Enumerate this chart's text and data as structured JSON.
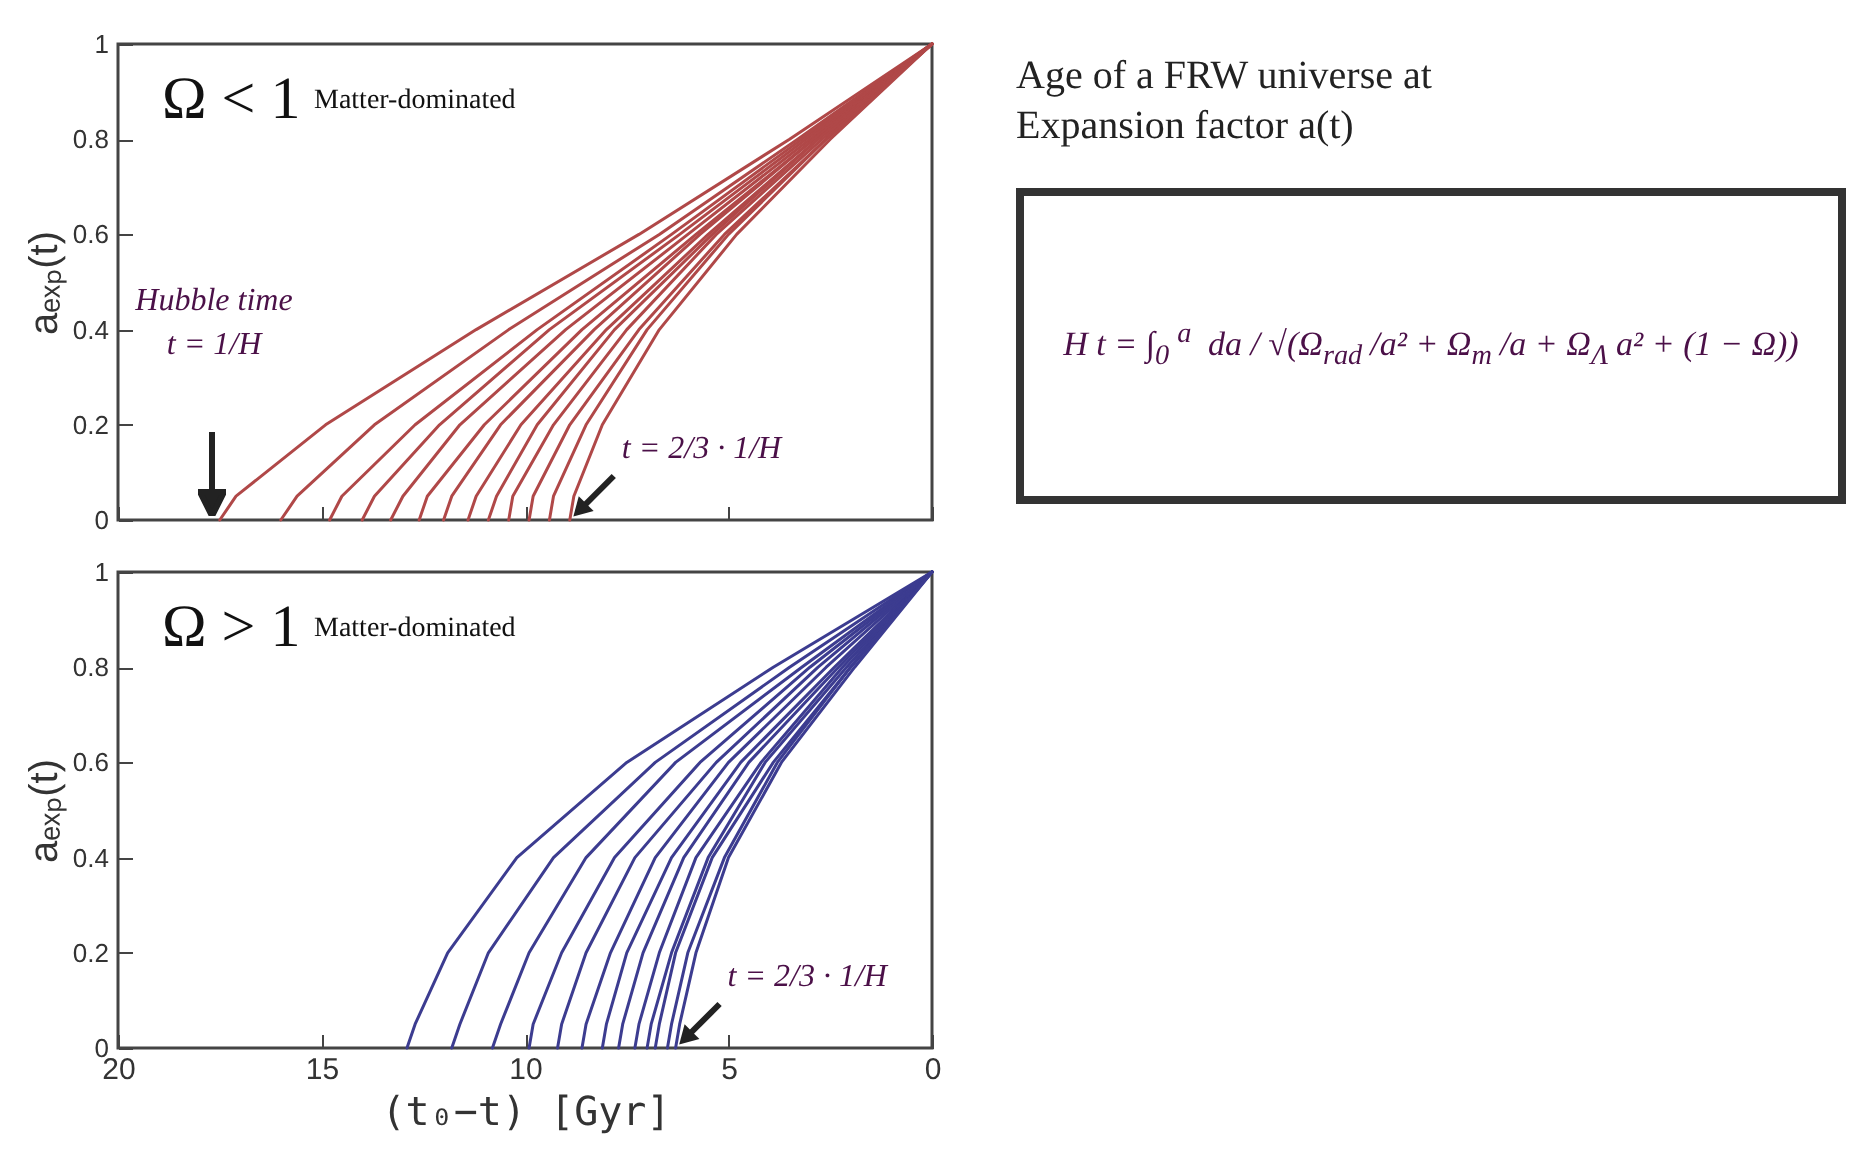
{
  "chart_data": [
    {
      "type": "line",
      "xlim": [
        20,
        0
      ],
      "ylim": [
        0,
        1
      ],
      "xticks": [
        20,
        15,
        10,
        5,
        0
      ],
      "yticks": [
        0,
        0.2,
        0.4,
        0.6,
        0.8,
        1
      ],
      "ylabel": "aₑₓₚ(t)",
      "tick_labels": "y",
      "annotations": [
        "Ω < 1",
        "Matter-dominated",
        "Hubble time\nt = 1/H",
        {
          "text": "t = 2/3 · 1/H",
          "x": 8.9,
          "y": 0
        }
      ],
      "series": [
        {
          "color": "#b04848",
          "x": [
            17.5,
            17.1,
            14.9,
            11.2,
            7.2,
            3.5,
            0
          ],
          "values": [
            0,
            0.05,
            0.2,
            0.4,
            0.6,
            0.8,
            1
          ]
        },
        {
          "color": "#b04848",
          "x": [
            16.0,
            15.6,
            13.7,
            10.4,
            6.7,
            3.3,
            0
          ],
          "values": [
            0,
            0.05,
            0.2,
            0.4,
            0.6,
            0.8,
            1
          ]
        },
        {
          "color": "#b04848",
          "x": [
            14.8,
            14.5,
            12.7,
            9.7,
            6.4,
            3.2,
            0
          ],
          "values": [
            0,
            0.05,
            0.2,
            0.4,
            0.6,
            0.8,
            1
          ]
        },
        {
          "color": "#b04848",
          "x": [
            14.0,
            13.7,
            12.1,
            9.4,
            6.2,
            3.1,
            0
          ],
          "values": [
            0,
            0.05,
            0.2,
            0.4,
            0.6,
            0.8,
            1
          ]
        },
        {
          "color": "#b04848",
          "x": [
            13.3,
            13.0,
            11.6,
            9.0,
            6.0,
            3.0,
            0
          ],
          "values": [
            0,
            0.05,
            0.2,
            0.4,
            0.6,
            0.8,
            1
          ]
        },
        {
          "color": "#b04848",
          "x": [
            12.6,
            12.4,
            11.0,
            8.6,
            5.8,
            2.9,
            0
          ],
          "values": [
            0,
            0.05,
            0.2,
            0.4,
            0.6,
            0.8,
            1
          ]
        },
        {
          "color": "#b04848",
          "x": [
            12.0,
            11.8,
            10.6,
            8.3,
            5.7,
            2.9,
            0
          ],
          "values": [
            0,
            0.05,
            0.2,
            0.4,
            0.6,
            0.8,
            1
          ]
        },
        {
          "color": "#b04848",
          "x": [
            11.4,
            11.2,
            10.1,
            8.0,
            5.5,
            2.8,
            0
          ],
          "values": [
            0,
            0.05,
            0.2,
            0.4,
            0.6,
            0.8,
            1
          ]
        },
        {
          "color": "#b04848",
          "x": [
            10.9,
            10.7,
            9.7,
            7.8,
            5.4,
            2.8,
            0
          ],
          "values": [
            0,
            0.05,
            0.2,
            0.4,
            0.6,
            0.8,
            1
          ]
        },
        {
          "color": "#b04848",
          "x": [
            10.4,
            10.3,
            9.3,
            7.5,
            5.3,
            2.7,
            0
          ],
          "values": [
            0,
            0.05,
            0.2,
            0.4,
            0.6,
            0.8,
            1
          ]
        },
        {
          "color": "#b04848",
          "x": [
            9.9,
            9.8,
            8.9,
            7.2,
            5.1,
            2.6,
            0
          ],
          "values": [
            0,
            0.05,
            0.2,
            0.4,
            0.6,
            0.8,
            1
          ]
        },
        {
          "color": "#b04848",
          "x": [
            9.4,
            9.3,
            8.5,
            7.0,
            5.0,
            2.6,
            0
          ],
          "values": [
            0,
            0.05,
            0.2,
            0.4,
            0.6,
            0.8,
            1
          ]
        },
        {
          "color": "#b04848",
          "x": [
            8.9,
            8.8,
            8.1,
            6.7,
            4.8,
            2.5,
            0
          ],
          "values": [
            0,
            0.05,
            0.2,
            0.4,
            0.6,
            0.8,
            1
          ]
        }
      ]
    },
    {
      "type": "line",
      "xlim": [
        20,
        0
      ],
      "ylim": [
        0,
        1
      ],
      "xticks": [
        20,
        15,
        10,
        5,
        0
      ],
      "yticks": [
        0,
        0.2,
        0.4,
        0.6,
        0.8,
        1
      ],
      "xlabel": "(t₀−t) [Gyr]",
      "ylabel": "aₑₓₚ(t)",
      "annotations": [
        "Ω > 1",
        "Matter-dominated",
        {
          "text": "t = 2/3 · 1/H",
          "x": 6.3,
          "y": 0
        }
      ],
      "series": [
        {
          "color": "#3c3c90",
          "x": [
            12.9,
            12.7,
            11.9,
            10.2,
            7.5,
            3.9,
            0
          ],
          "values": [
            0,
            0.05,
            0.2,
            0.4,
            0.6,
            0.8,
            1
          ]
        },
        {
          "color": "#3c3c90",
          "x": [
            11.8,
            11.6,
            10.9,
            9.3,
            6.8,
            3.5,
            0
          ],
          "values": [
            0,
            0.05,
            0.2,
            0.4,
            0.6,
            0.8,
            1
          ]
        },
        {
          "color": "#3c3c90",
          "x": [
            10.8,
            10.6,
            9.9,
            8.5,
            6.3,
            3.2,
            0
          ],
          "values": [
            0,
            0.05,
            0.2,
            0.4,
            0.6,
            0.8,
            1
          ]
        },
        {
          "color": "#3c3c90",
          "x": [
            9.9,
            9.8,
            9.1,
            7.8,
            5.7,
            3.0,
            0
          ],
          "values": [
            0,
            0.05,
            0.2,
            0.4,
            0.6,
            0.8,
            1
          ]
        },
        {
          "color": "#3c3c90",
          "x": [
            9.2,
            9.1,
            8.5,
            7.3,
            5.3,
            2.8,
            0
          ],
          "values": [
            0,
            0.05,
            0.2,
            0.4,
            0.6,
            0.8,
            1
          ]
        },
        {
          "color": "#3c3c90",
          "x": [
            8.6,
            8.5,
            7.9,
            6.8,
            5.0,
            2.6,
            0
          ],
          "values": [
            0,
            0.05,
            0.2,
            0.4,
            0.6,
            0.8,
            1
          ]
        },
        {
          "color": "#3c3c90",
          "x": [
            8.1,
            8.0,
            7.5,
            6.4,
            4.7,
            2.4,
            0
          ],
          "values": [
            0,
            0.05,
            0.2,
            0.4,
            0.6,
            0.8,
            1
          ]
        },
        {
          "color": "#3c3c90",
          "x": [
            7.7,
            7.6,
            7.1,
            6.1,
            4.5,
            2.3,
            0
          ],
          "values": [
            0,
            0.05,
            0.2,
            0.4,
            0.6,
            0.8,
            1
          ]
        },
        {
          "color": "#3c3c90",
          "x": [
            7.3,
            7.2,
            6.7,
            5.8,
            4.2,
            2.2,
            0
          ],
          "values": [
            0,
            0.05,
            0.2,
            0.4,
            0.6,
            0.8,
            1
          ]
        },
        {
          "color": "#3c3c90",
          "x": [
            7.0,
            6.9,
            6.4,
            5.5,
            4.1,
            2.1,
            0
          ],
          "values": [
            0,
            0.05,
            0.2,
            0.4,
            0.6,
            0.8,
            1
          ]
        },
        {
          "color": "#3c3c90",
          "x": [
            6.8,
            6.7,
            6.3,
            5.4,
            3.9,
            2.0,
            0
          ],
          "values": [
            0,
            0.05,
            0.2,
            0.4,
            0.6,
            0.8,
            1
          ]
        },
        {
          "color": "#3c3c90",
          "x": [
            6.5,
            6.4,
            6.0,
            5.1,
            3.8,
            2.0,
            0
          ],
          "values": [
            0,
            0.05,
            0.2,
            0.4,
            0.6,
            0.8,
            1
          ]
        },
        {
          "color": "#3c3c90",
          "x": [
            6.3,
            6.2,
            5.8,
            5.0,
            3.7,
            1.9,
            0
          ],
          "values": [
            0,
            0.05,
            0.2,
            0.4,
            0.6,
            0.8,
            1
          ]
        }
      ]
    },
    {
      "type": "other",
      "title": "Age of a FRW universe at Expansion factor a(t)",
      "annotations": [
        "H t = ∫$_{0}$$^{a}$ da / √(Ω$_{rad}$/a² + Ω$_{m}$/a + Ω$_{Λ}$a² + (1 − Ω))"
      ]
    }
  ]
}
